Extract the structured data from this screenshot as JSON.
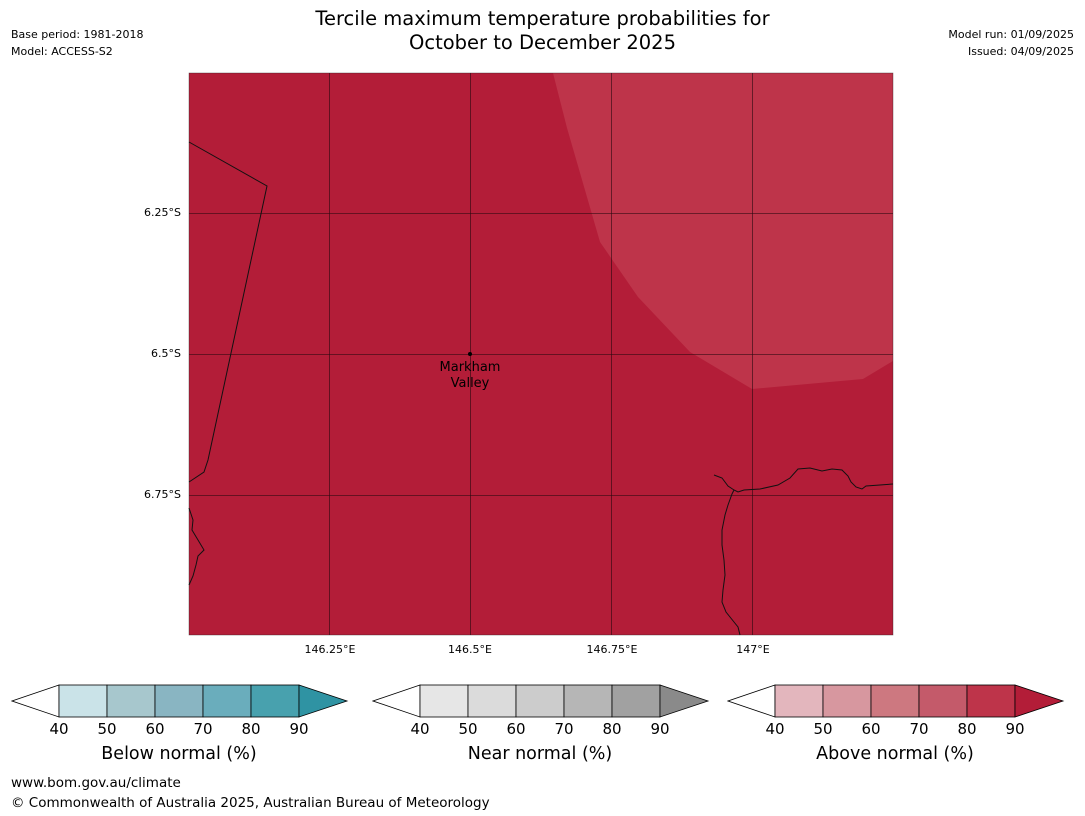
{
  "header": {
    "title_line1": "Tercile maximum temperature probabilities for",
    "title_line2": "October to December 2025",
    "base_period": "Base period: 1981-2018",
    "model": "Model: ACCESS-S2",
    "model_run": "Model run: 01/09/2025",
    "issued": "Issued: 04/09/2025"
  },
  "map": {
    "fill_colors": {
      "above_90": "#B31D38",
      "above_80_90": "#BE344A"
    },
    "lat_labels": [
      "6.25°S",
      "6.5°S",
      "6.75°S"
    ],
    "lon_labels": [
      "146.25°E",
      "146.5°E",
      "146.75°E",
      "147°E"
    ],
    "place": {
      "line1": "Markham",
      "line2": "Valley"
    }
  },
  "colorbars": [
    {
      "title": "Below normal (%)",
      "ticks": [
        "40",
        "50",
        "60",
        "70",
        "80",
        "90"
      ],
      "colors": [
        "#CAE3E8",
        "#A7C7CD",
        "#89B5C2",
        "#6AADBC",
        "#48A1AE",
        "#2F93A3"
      ]
    },
    {
      "title": "Near normal (%)",
      "ticks": [
        "40",
        "50",
        "60",
        "70",
        "80",
        "90"
      ],
      "colors": [
        "#E6E6E6",
        "#DBDBDB",
        "#CCCCCC",
        "#B6B6B6",
        "#A1A1A1",
        "#8A8A8A"
      ]
    },
    {
      "title": "Above normal (%)",
      "ticks": [
        "40",
        "50",
        "60",
        "70",
        "80",
        "90"
      ],
      "colors": [
        "#E3B6BD",
        "#D7979F",
        "#CD7880",
        "#C45A6A",
        "#BE344A",
        "#B31D38"
      ]
    }
  ],
  "footer": {
    "url": "www.bom.gov.au/climate",
    "copyright": "© Commonwealth of Australia 2025, Australian Bureau of Meteorology"
  }
}
